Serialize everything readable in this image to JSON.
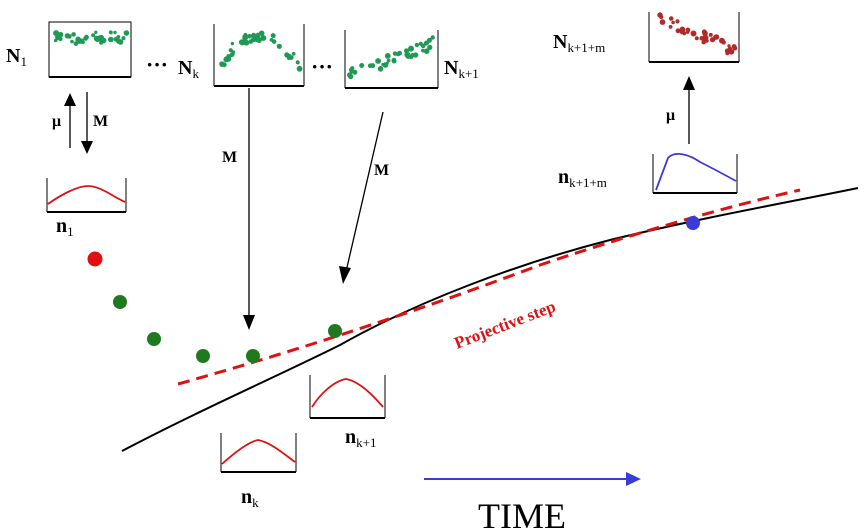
{
  "labels": {
    "N1": {
      "main": "N",
      "sub": "1"
    },
    "dots_1": "···",
    "Nk": {
      "main": "N",
      "sub": "k"
    },
    "dots_2": "···",
    "Nk1": {
      "main": "N",
      "sub": "k+1"
    },
    "Nk1m": {
      "main": "N",
      "sub": "k+1+m"
    },
    "mu_left": "μ",
    "M_left": "M",
    "M_mid": "M",
    "M_right": "M",
    "mu_right": "μ",
    "n1": {
      "main": "n",
      "sub": "1"
    },
    "nk": {
      "main": "n",
      "sub": "k"
    },
    "nk1": {
      "main": "n",
      "sub": "k+1"
    },
    "nk1m": {
      "main": "n",
      "sub": "k+1+m"
    },
    "projective_step": "Projective step",
    "time": "TIME"
  },
  "colors": {
    "micro_dots": "#1f9a55",
    "trajectory": "#000000",
    "projective": "#e01010",
    "red_point": "#e01010",
    "green_point": "#1f7a1f",
    "blue_point": "#3b3bd6",
    "time_arrow": "#3b3bd6",
    "density_curve": "#e01010",
    "final_density_curve": "#3b3bd6",
    "final_micro_dots": "#b02a2a"
  },
  "icons": {
    "micro_box": "particle-ensemble-icon",
    "density_box": "density-profile-icon"
  }
}
